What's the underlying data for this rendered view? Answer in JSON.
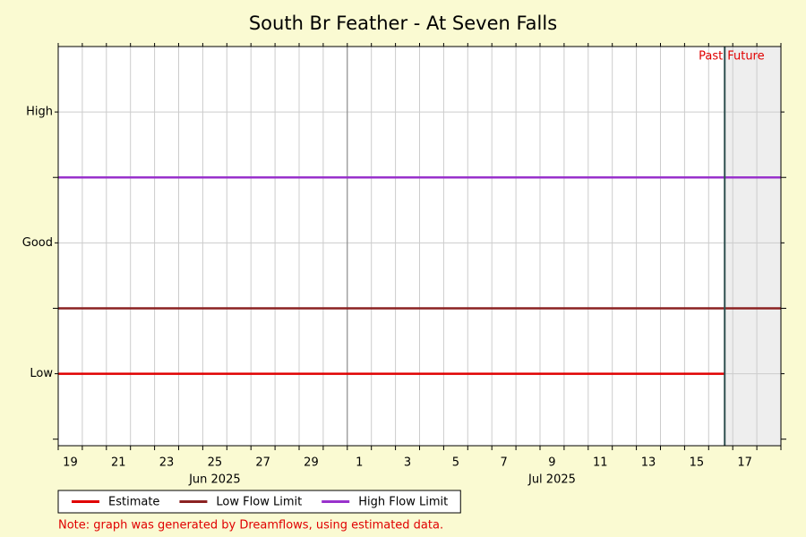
{
  "chart_data": {
    "type": "line",
    "title": "South Br Feather - At Seven Falls",
    "x_unit": "day",
    "xlim": [
      "2025-06-19",
      "2025-07-19"
    ],
    "xticks": [
      {
        "value": "2025-06-19",
        "label": "19"
      },
      {
        "value": "2025-06-21",
        "label": "21"
      },
      {
        "value": "2025-06-23",
        "label": "23"
      },
      {
        "value": "2025-06-25",
        "label": "25"
      },
      {
        "value": "2025-06-27",
        "label": "27"
      },
      {
        "value": "2025-06-29",
        "label": "29"
      },
      {
        "value": "2025-07-01",
        "label": "1"
      },
      {
        "value": "2025-07-03",
        "label": "3"
      },
      {
        "value": "2025-07-05",
        "label": "5"
      },
      {
        "value": "2025-07-07",
        "label": "7"
      },
      {
        "value": "2025-07-09",
        "label": "9"
      },
      {
        "value": "2025-07-11",
        "label": "11"
      },
      {
        "value": "2025-07-13",
        "label": "13"
      },
      {
        "value": "2025-07-15",
        "label": "15"
      },
      {
        "value": "2025-07-17",
        "label": "17"
      }
    ],
    "month_labels": [
      {
        "value": "2025-06-25",
        "label": "Jun 2025"
      },
      {
        "value": "2025-07-09",
        "label": "Jul 2025"
      }
    ],
    "xgrid": [
      "2025-06-19",
      "2025-06-20",
      "2025-06-21",
      "2025-06-22",
      "2025-06-23",
      "2025-06-24",
      "2025-06-25",
      "2025-06-26",
      "2025-06-27",
      "2025-06-28",
      "2025-06-29",
      "2025-06-30",
      "2025-07-01",
      "2025-07-02",
      "2025-07-03",
      "2025-07-04",
      "2025-07-05",
      "2025-07-06",
      "2025-07-07",
      "2025-07-08",
      "2025-07-09",
      "2025-07-10",
      "2025-07-11",
      "2025-07-12",
      "2025-07-13",
      "2025-07-14",
      "2025-07-15",
      "2025-07-16",
      "2025-07-17",
      "2025-07-18",
      "2025-07-19"
    ],
    "month_boundary": "2025-07-01",
    "now": "2025-07-16T16:00",
    "past_label": "Past",
    "future_label": "Future",
    "ylim": [
      -0.05,
      3
    ],
    "yticks": [
      {
        "value": 0.5,
        "label": "Low"
      },
      {
        "value": 1.5,
        "label": "Good"
      },
      {
        "value": 2.5,
        "label": "High"
      }
    ],
    "y_boundary_ticks": [
      0,
      1,
      2
    ],
    "grid": true,
    "series": [
      {
        "name": "Estimate",
        "color": "#e00000",
        "x": [
          "2025-06-19",
          "2025-07-16T16:00"
        ],
        "values": [
          0.5,
          0.5
        ]
      },
      {
        "name": "Low Flow Limit",
        "color": "#8b2222",
        "x": [
          "2025-06-19",
          "2025-07-19"
        ],
        "values": [
          1,
          1
        ]
      },
      {
        "name": "High Flow Limit",
        "color": "#9932cc",
        "x": [
          "2025-06-19",
          "2025-07-19"
        ],
        "values": [
          2,
          2
        ]
      }
    ],
    "note": "Note: graph was generated by Dreamflows, using estimated data."
  }
}
